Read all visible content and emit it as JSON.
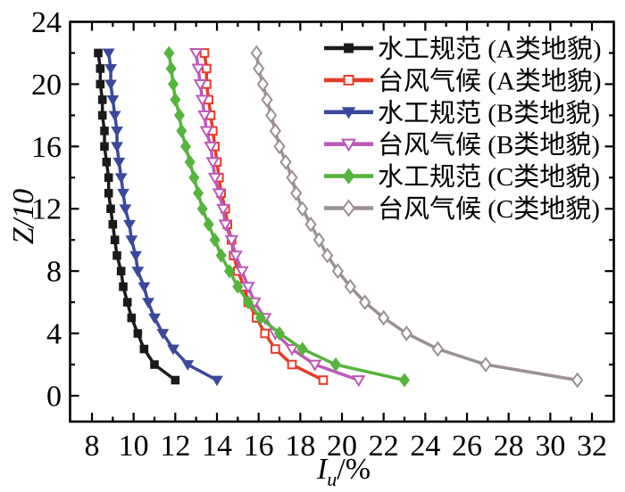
{
  "figure": {
    "background": "#ffffff",
    "axis_color": "#000000",
    "text_color": "#000000"
  },
  "chart_data": {
    "type": "line",
    "title": "",
    "xlabel": {
      "main": "I",
      "sub": "u",
      "unit": "/%"
    },
    "ylabel": "Z/10",
    "xlim": [
      6.95,
      33.05
    ],
    "ylim": [
      -1.66,
      24
    ],
    "x_major_ticks": [
      8,
      10,
      12,
      14,
      16,
      18,
      20,
      22,
      24,
      26,
      28,
      30,
      32
    ],
    "x_minor_ticks": [
      9,
      11,
      13,
      15,
      17,
      19,
      21,
      23,
      25,
      27,
      29,
      31
    ],
    "y_major_ticks": [
      0,
      4,
      8,
      12,
      16,
      20,
      24
    ],
    "y_minor_ticks": [
      2,
      6,
      10,
      14,
      18,
      22
    ],
    "grid": false,
    "legend_position": "inside-top-right",
    "z": [
      1,
      2,
      3,
      4,
      5,
      6,
      7,
      8,
      9,
      10,
      11,
      12,
      13,
      14,
      15,
      16,
      17,
      18,
      19,
      20,
      21,
      22
    ],
    "series": [
      {
        "name": "水工规范 (A类地貌)",
        "color": "#1a1a1a",
        "marker": "square",
        "marker_fill": "solid",
        "values": [
          12.0,
          11.0,
          10.5,
          10.2,
          9.9,
          9.7,
          9.5,
          9.4,
          9.2,
          9.1,
          9.0,
          8.9,
          8.8,
          8.8,
          8.7,
          8.6,
          8.6,
          8.5,
          8.5,
          8.4,
          8.4,
          8.3
        ]
      },
      {
        "name": "台风气候 (A类地貌)",
        "color": "#ea3a28",
        "marker": "square",
        "marker_fill": "open",
        "values": [
          19.1,
          17.6,
          16.8,
          16.3,
          15.9,
          15.5,
          15.3,
          15.0,
          14.8,
          14.7,
          14.5,
          14.4,
          14.2,
          14.1,
          14.0,
          13.9,
          13.8,
          13.7,
          13.6,
          13.5,
          13.5,
          13.4
        ]
      },
      {
        "name": "水工规范 (B类地貌)",
        "color": "#3b489c",
        "marker": "triangle-down",
        "marker_fill": "solid",
        "values": [
          14.0,
          12.6,
          11.9,
          11.4,
          11.0,
          10.7,
          10.5,
          10.2,
          10.1,
          9.9,
          9.8,
          9.6,
          9.5,
          9.4,
          9.3,
          9.2,
          9.2,
          9.1,
          9.0,
          8.9,
          8.9,
          8.8
        ]
      },
      {
        "name": "台风气候 (B类地貌)",
        "color": "#bd58b8",
        "marker": "triangle-down",
        "marker_fill": "open",
        "values": [
          20.8,
          18.7,
          17.6,
          16.8,
          16.3,
          15.8,
          15.5,
          15.2,
          14.9,
          14.7,
          14.4,
          14.3,
          14.1,
          13.9,
          13.8,
          13.7,
          13.5,
          13.4,
          13.3,
          13.2,
          13.1,
          13.0
        ]
      },
      {
        "name": "水工规范 (C类地貌)",
        "color": "#55b43c",
        "marker": "diamond",
        "marker_fill": "solid",
        "values": [
          23.0,
          19.7,
          18.1,
          17.0,
          16.1,
          15.5,
          15.0,
          14.6,
          14.2,
          13.9,
          13.6,
          13.3,
          13.1,
          12.9,
          12.7,
          12.5,
          12.3,
          12.2,
          12.0,
          11.9,
          11.8,
          11.7
        ]
      },
      {
        "name": "台风气候 (C类地貌)",
        "color": "#9a9090",
        "marker": "diamond",
        "marker_fill": "open",
        "values": [
          31.3,
          26.9,
          24.6,
          23.1,
          22.0,
          21.1,
          20.4,
          19.8,
          19.3,
          18.9,
          18.5,
          18.1,
          17.8,
          17.6,
          17.3,
          17.0,
          16.8,
          16.6,
          16.4,
          16.2,
          16.0,
          15.9
        ]
      }
    ]
  }
}
